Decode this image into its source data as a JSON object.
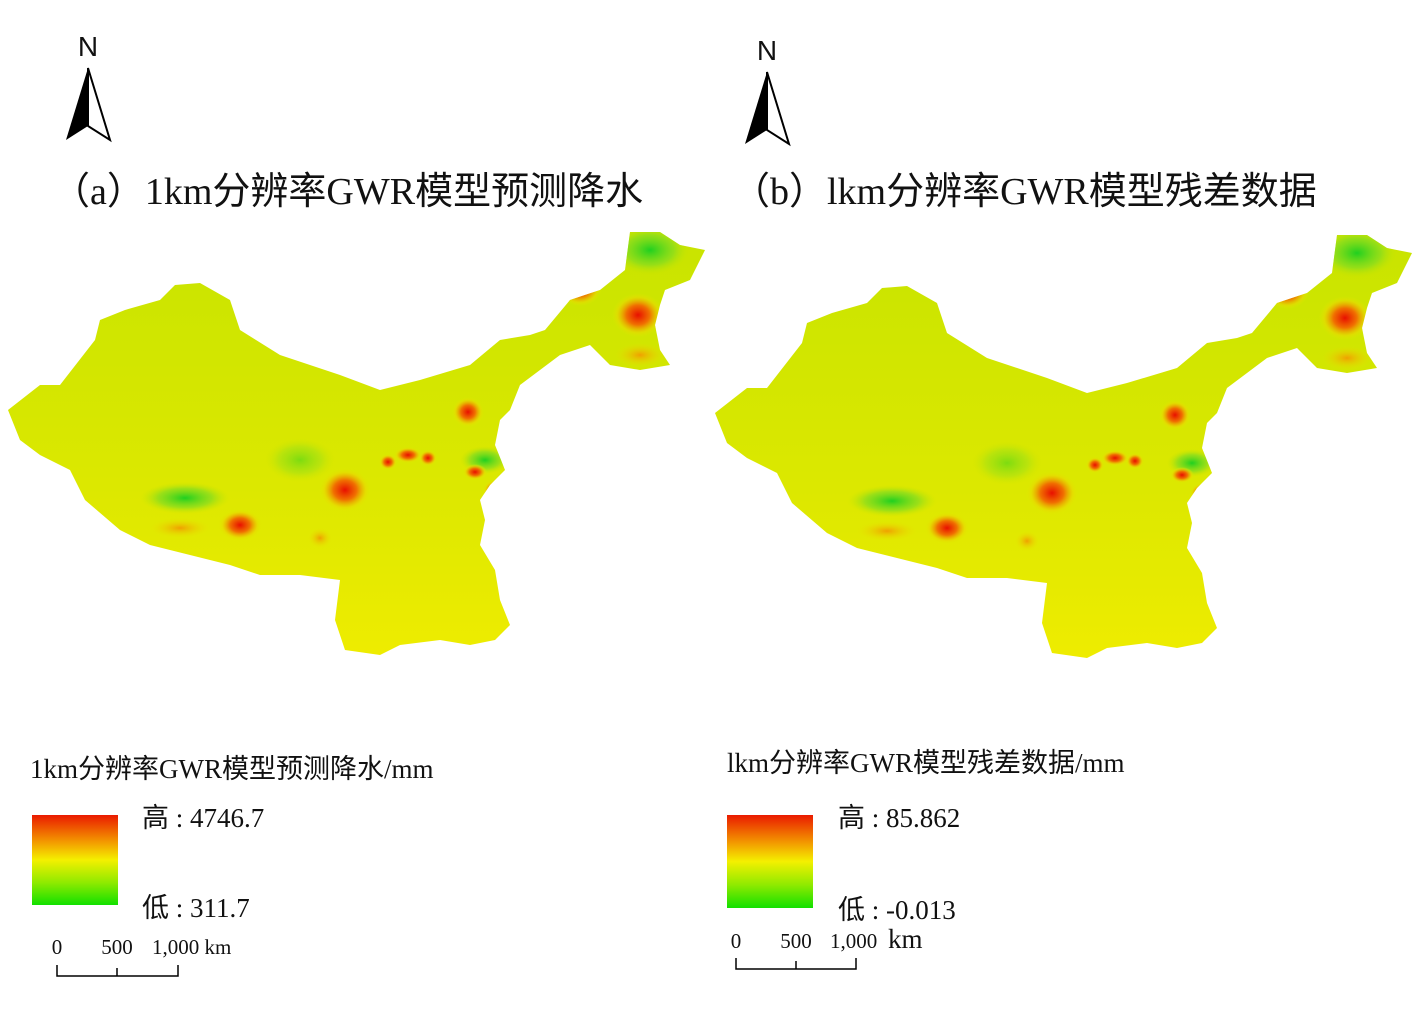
{
  "panels": [
    {
      "north": "N",
      "title": "（a）1km分辨率GWR模型预测降水",
      "legend": {
        "title": "1km分辨率GWR模型预测降水/mm",
        "high": "高 : 4746.7",
        "low": "低 : 311.7"
      },
      "scale_bar": {
        "labels": [
          "0",
          "500",
          "1,000 km"
        ]
      }
    },
    {
      "north": "N",
      "title": "（b）lkm分辨率GWR模型残差数据",
      "legend": {
        "title": "lkm分辨率GWR模型残差数据/mm",
        "high": "高 : 85.862",
        "low": "低 : -0.013"
      },
      "scale_bar": {
        "labels": [
          "0",
          "500",
          "1,000",
          "km"
        ]
      }
    }
  ]
}
